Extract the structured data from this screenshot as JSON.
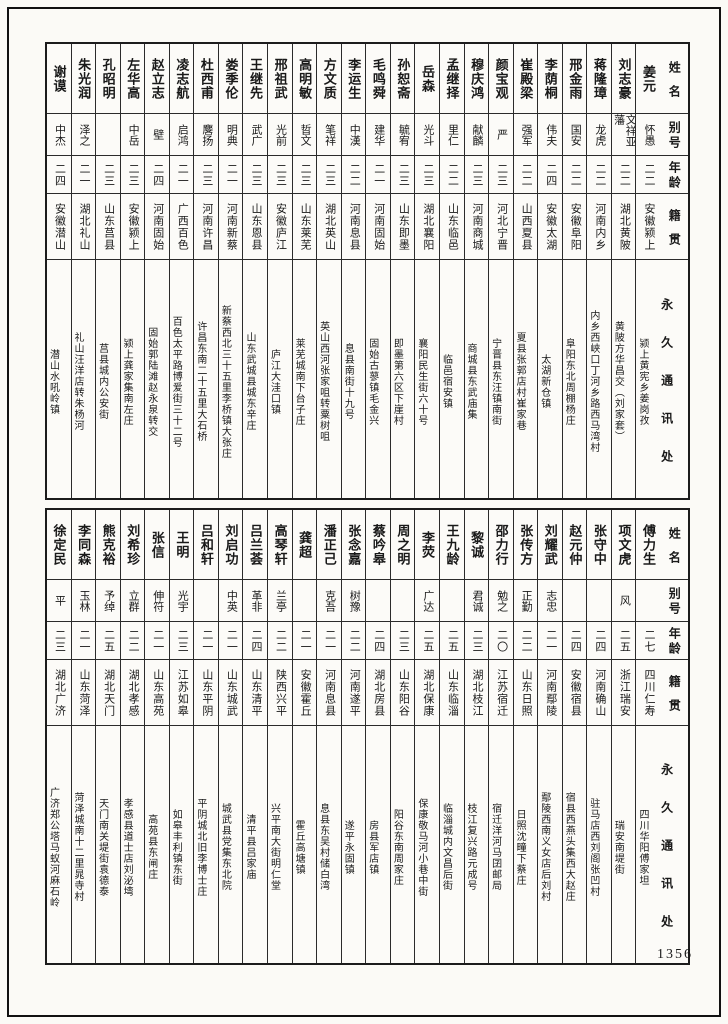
{
  "page": {
    "number": "1356"
  },
  "headers": {
    "name": "姓名",
    "alias": "别号",
    "age": "年龄",
    "origin": "籍贯",
    "address": "永久通讯处"
  },
  "sections": {
    "top": {
      "people": [
        {
          "name": "姜元",
          "alias": "怀愚",
          "age": "二二",
          "origin": "安徽颍上",
          "address": "颍上黄宪乡姜岗孜"
        },
        {
          "name": "刘志豪",
          "alias": "文祥亚藩",
          "age": "二二",
          "origin": "湖北黄陂",
          "address": "黄陂方华昌交（刘家套）"
        },
        {
          "name": "蒋隆璋",
          "alias": "龙虎",
          "age": "二二",
          "origin": "河南内乡",
          "address": "内乡西峡口丁河乡路西马湾村"
        },
        {
          "name": "邢金雨",
          "alias": "国安",
          "age": "二二",
          "origin": "安徽阜阳",
          "address": "阜阳东北周棚杨庄"
        },
        {
          "name": "李荫桐",
          "alias": "伟夫",
          "age": "二四",
          "origin": "安徽太湖",
          "address": "太湖新仓镇"
        },
        {
          "name": "崔殿梁",
          "alias": "强军",
          "age": "二二",
          "origin": "山西夏县",
          "address": "夏县张郭店村崔家巷"
        },
        {
          "name": "颜宝观",
          "alias": "严",
          "age": "二三",
          "origin": "河北宁晋",
          "address": "宁晋县东汪镇南街"
        },
        {
          "name": "穆庆鸿",
          "alias": "献麟",
          "age": "二三",
          "origin": "河南商城",
          "address": "商城县东武庙集"
        },
        {
          "name": "孟继择",
          "alias": "里仁",
          "age": "二二",
          "origin": "山东临邑",
          "address": "临邑宿安镇"
        },
        {
          "name": "岳森",
          "alias": "光斗",
          "age": "二三",
          "origin": "湖北襄阳",
          "address": "襄阳民生街六十号"
        },
        {
          "name": "孙恕斋",
          "alias": "毓宥",
          "age": "二三",
          "origin": "山东即墨",
          "address": "即墨第六区下崖村"
        },
        {
          "name": "毛鸣舜",
          "alias": "建华",
          "age": "二一",
          "origin": "河南固始",
          "address": "固始古蓼镇毛金兴"
        },
        {
          "name": "李运生",
          "alias": "中漢",
          "age": "二二",
          "origin": "河南息县",
          "address": "息县南街十九号"
        },
        {
          "name": "方文质",
          "alias": "笔祥",
          "age": "二三",
          "origin": "湖北英山",
          "address": "英山西河张家咀转粟树咀"
        },
        {
          "name": "高明敏",
          "alias": "晢文",
          "age": "二三",
          "origin": "山东莱芜",
          "address": "莱芜城南下台子庄"
        },
        {
          "name": "邢祖武",
          "alias": "光前",
          "age": "二三",
          "origin": "安徽庐江",
          "address": "庐江大洼口镇"
        },
        {
          "name": "王继先",
          "alias": "武广",
          "age": "二三",
          "origin": "山东恩县",
          "address": "山东武城县城东辛庄"
        },
        {
          "name": "娄季伦",
          "alias": "明典",
          "age": "二一",
          "origin": "河南新蔡",
          "address": "新蔡西北三十五里李桥镇大张庄"
        },
        {
          "name": "杜西甫",
          "alias": "麐扬",
          "age": "二三",
          "origin": "河南许昌",
          "address": "许昌东南二十五里大石桥"
        },
        {
          "name": "凌志航",
          "alias": "启鸿",
          "age": "二一",
          "origin": "广西百色",
          "address": "百色太平路博爱街三十二号"
        },
        {
          "name": "赵立志",
          "alias": "壁",
          "age": "二四",
          "origin": "河南固始",
          "address": "固始郭陆滩赵永泉转交"
        },
        {
          "name": "左华高",
          "alias": "中岳",
          "age": "二三",
          "origin": "安徽颍上",
          "address": "颍上龚家集南左庄"
        },
        {
          "name": "孔昭明",
          "alias": "",
          "age": "二三",
          "origin": "山东莒县",
          "address": "莒县城内公安街"
        },
        {
          "name": "朱光润",
          "alias": "泽之",
          "age": "二一",
          "origin": "湖北礼山",
          "address": "礼山汪洋店转朱杨河"
        },
        {
          "name": "谢谟",
          "alias": "中杰",
          "age": "二四",
          "origin": "安徽潜山",
          "address": "潜山水吼岭镇"
        }
      ]
    },
    "bottom": {
      "people": [
        {
          "name": "傅力生",
          "alias": "",
          "age": "二七",
          "origin": "四川仁寿",
          "address": "四川华阳傅家坦"
        },
        {
          "name": "项文虎",
          "alias": "风",
          "age": "二五",
          "origin": "浙江瑞安",
          "address": "瑞安南堤街"
        },
        {
          "name": "张守中",
          "alias": "",
          "age": "二四",
          "origin": "河南确山",
          "address": "驻马店西刘阁张凹村"
        },
        {
          "name": "赵元仲",
          "alias": "",
          "age": "二四",
          "origin": "安徽宿县",
          "address": "宿县西燕头集西大赵庄"
        },
        {
          "name": "刘耀武",
          "alias": "志忠",
          "age": "二一",
          "origin": "河南鄢陵",
          "address": "鄢陵西南义女店后刘村"
        },
        {
          "name": "张传方",
          "alias": "正勤",
          "age": "二二",
          "origin": "山东日照",
          "address": "日照沈疃下蔡庄"
        },
        {
          "name": "邵力行",
          "alias": "勉之",
          "age": "二〇",
          "origin": "江苏宿迁",
          "address": "宿迁洋河马囝邮局"
        },
        {
          "name": "黎诚",
          "alias": "君诚",
          "age": "二三",
          "origin": "湖北枝江",
          "address": "枝江复兴路元成号"
        },
        {
          "name": "王九龄",
          "alias": "",
          "age": "二五",
          "origin": "山东临淄",
          "address": "临淄城内文昌后街"
        },
        {
          "name": "李荧",
          "alias": "广达",
          "age": "二五",
          "origin": "湖北保康",
          "address": "保康敬马河小巷中街"
        },
        {
          "name": "周之明",
          "alias": "",
          "age": "二三",
          "origin": "山东阳谷",
          "address": "阳谷东南周家庄"
        },
        {
          "name": "蔡吟皋",
          "alias": "",
          "age": "二四",
          "origin": "湖北房县",
          "address": "房县军店镇"
        },
        {
          "name": "张念嘉",
          "alias": "树豫",
          "age": "二二",
          "origin": "河南遂平",
          "address": "遂平永固镇"
        },
        {
          "name": "潘正己",
          "alias": "克吾",
          "age": "二一",
          "origin": "河南息县",
          "address": "息县东吴村储白湾"
        },
        {
          "name": "龚超",
          "alias": "",
          "age": "二一",
          "origin": "安徽霍丘",
          "address": "霍丘高塘镇"
        },
        {
          "name": "高琴轩",
          "alias": "兰亭",
          "age": "二二",
          "origin": "陕西兴平",
          "address": "兴平南大街明仁堂"
        },
        {
          "name": "吕兰荟",
          "alias": "革非",
          "age": "二四",
          "origin": "山东清平",
          "address": "清平县吕家庙"
        },
        {
          "name": "刘启功",
          "alias": "中英",
          "age": "二一",
          "origin": "山东城武",
          "address": "城武县党集东北院"
        },
        {
          "name": "吕和轩",
          "alias": "",
          "age": "二一",
          "origin": "山东平阴",
          "address": "平阴城北旧李博士庄"
        },
        {
          "name": "王明",
          "alias": "光宇",
          "age": "二三",
          "origin": "江苏如皋",
          "address": "如皋丰利镇东街"
        },
        {
          "name": "张信",
          "alias": "伸符",
          "age": "二一",
          "origin": "山东高苑",
          "address": "高苑县东闸庄"
        },
        {
          "name": "刘希珍",
          "alias": "立群",
          "age": "二二",
          "origin": "湖北孝感",
          "address": "孝感县道士店刘泌塆"
        },
        {
          "name": "熊克裕",
          "alias": "予绰",
          "age": "二五",
          "origin": "湖北天门",
          "address": "天门南关堤街袁德泰"
        },
        {
          "name": "李同森",
          "alias": "玉林",
          "age": "二一",
          "origin": "山东菏泽",
          "address": "菏泽城南十二里晁寺村"
        },
        {
          "name": "徐定民",
          "alias": "平",
          "age": "二三",
          "origin": "湖北广济",
          "address": "广济郑公塔马蚁河麻石岭"
        }
      ]
    }
  }
}
